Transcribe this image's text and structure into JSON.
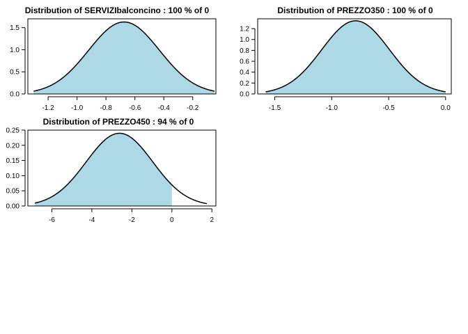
{
  "colors": {
    "fill": "#add8e6",
    "curve": "#000000",
    "background": "#ffffff"
  },
  "chart_data": [
    {
      "type": "area",
      "title": "Distribution of SERVIZIbalconcino : 100 % of 0",
      "xlabel": "",
      "ylabel": "",
      "mean": -0.675,
      "sd": 0.245,
      "x_range": [
        -1.3,
        -0.05
      ],
      "shade_range": [
        -1.3,
        -0.05
      ],
      "xlim": [
        -1.34,
        -0.04
      ],
      "ylim": [
        0,
        1.7
      ],
      "x_ticks": [
        -1.2,
        -1.0,
        -0.8,
        -0.6,
        -0.4,
        -0.2
      ],
      "x_tick_labels": [
        "-1.2",
        "-1.0",
        "-0.8",
        "-0.6",
        "-0.4",
        "-0.2"
      ],
      "y_ticks": [
        0,
        0.5,
        1.0,
        1.5
      ],
      "y_tick_labels": [
        "0.0",
        "0.5",
        "1.0",
        "1.5"
      ]
    },
    {
      "type": "area",
      "title": "Distribution of PREZZO350 : 100 % of 0",
      "xlabel": "",
      "ylabel": "",
      "mean": -0.79,
      "sd": 0.297,
      "x_range": [
        -1.58,
        0.0
      ],
      "shade_range": [
        -1.58,
        0.0
      ],
      "xlim": [
        -1.65,
        0.05
      ],
      "ylim": [
        0,
        1.38
      ],
      "x_ticks": [
        -1.5,
        -1.0,
        -0.5,
        0.0
      ],
      "x_tick_labels": [
        "-1.5",
        "-1.0",
        "-0.5",
        "0.0"
      ],
      "y_ticks": [
        0,
        0.2,
        0.4,
        0.6,
        0.8,
        1.0,
        1.2
      ],
      "y_tick_labels": [
        "0.0",
        "0.2",
        "0.4",
        "0.6",
        "0.8",
        "1.0",
        "1.2"
      ]
    },
    {
      "type": "area",
      "title": "Distribution of PREZZO450 : 94 % of 0",
      "xlabel": "",
      "ylabel": "",
      "mean": -2.62,
      "sd": 1.665,
      "x_range": [
        -6.85,
        1.75
      ],
      "shade_range": [
        -6.85,
        0.0
      ],
      "xlim": [
        -7.2,
        2.2
      ],
      "ylim": [
        0,
        0.25
      ],
      "x_ticks": [
        -6,
        -4,
        -2,
        0,
        2
      ],
      "x_tick_labels": [
        "-6",
        "-4",
        "-2",
        "0",
        "2"
      ],
      "y_ticks": [
        0,
        0.05,
        0.1,
        0.15,
        0.2,
        0.25
      ],
      "y_tick_labels": [
        "0.00",
        "0.05",
        "0.10",
        "0.15",
        "0.20",
        "0.25"
      ]
    }
  ]
}
